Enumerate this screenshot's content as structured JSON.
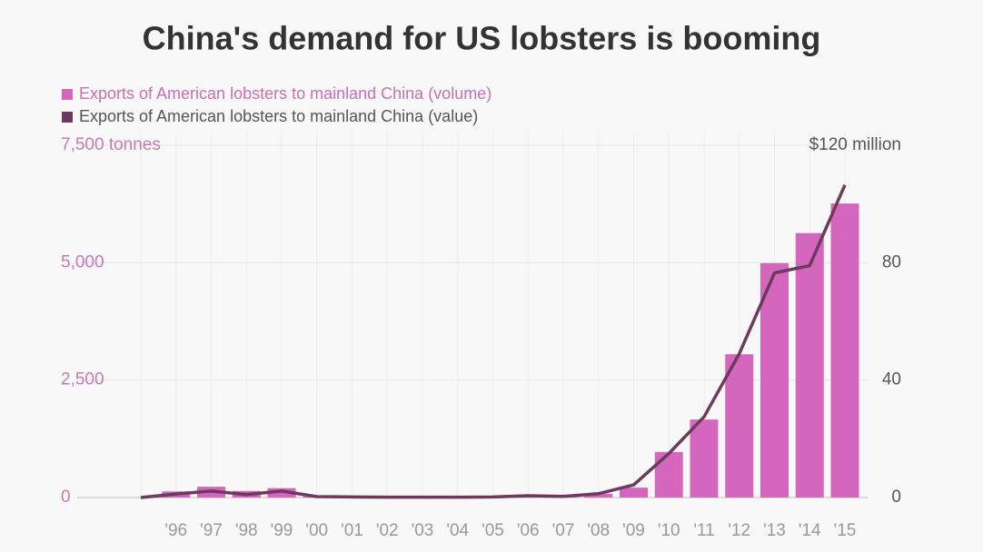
{
  "chart_data": {
    "type": "bar-line",
    "title": "China's demand for US lobsters is booming",
    "legend": "top-left",
    "grid": true,
    "categories": [
      null,
      "'96",
      "'97",
      "'98",
      "'99",
      "'00",
      "'01",
      "'02",
      "'03",
      "'04",
      "'05",
      "'06",
      "'07",
      "'08",
      "'09",
      "'10",
      "'11",
      "'12",
      "'13",
      "'14",
      "'15"
    ],
    "ylim": [
      0,
      7500
    ],
    "yticks": [
      0,
      {
        "value": 2500,
        "label": "2,500"
      },
      {
        "value": 5000,
        "label": "5,000"
      },
      {
        "value": 7500,
        "label": "7,500 tonnes"
      }
    ],
    "y2lim": [
      0,
      120
    ],
    "y2ticks": [
      0,
      40,
      80,
      {
        "value": 120,
        "label": "$120 million"
      }
    ],
    "series": [
      {
        "name": "Exports of American lobsters to mainland China (volume)",
        "type": "bar",
        "color": "#d467bd",
        "values": [
          null,
          130,
          230,
          140,
          200,
          20,
          10,
          5,
          5,
          10,
          10,
          30,
          20,
          80,
          210,
          970,
          1660,
          3050,
          4990,
          5630,
          6260
        ]
      },
      {
        "name": "Exports of American lobsters to mainland China (value)",
        "type": "line",
        "axis": "y2",
        "color": "#6b3a5c",
        "values": [
          0,
          1.2,
          2.2,
          1,
          2.2,
          0.3,
          0.2,
          0.1,
          0.1,
          0.1,
          0.2,
          0.6,
          0.4,
          1.3,
          4.3,
          15,
          27.5,
          49,
          76.5,
          79,
          106.5
        ]
      }
    ]
  }
}
